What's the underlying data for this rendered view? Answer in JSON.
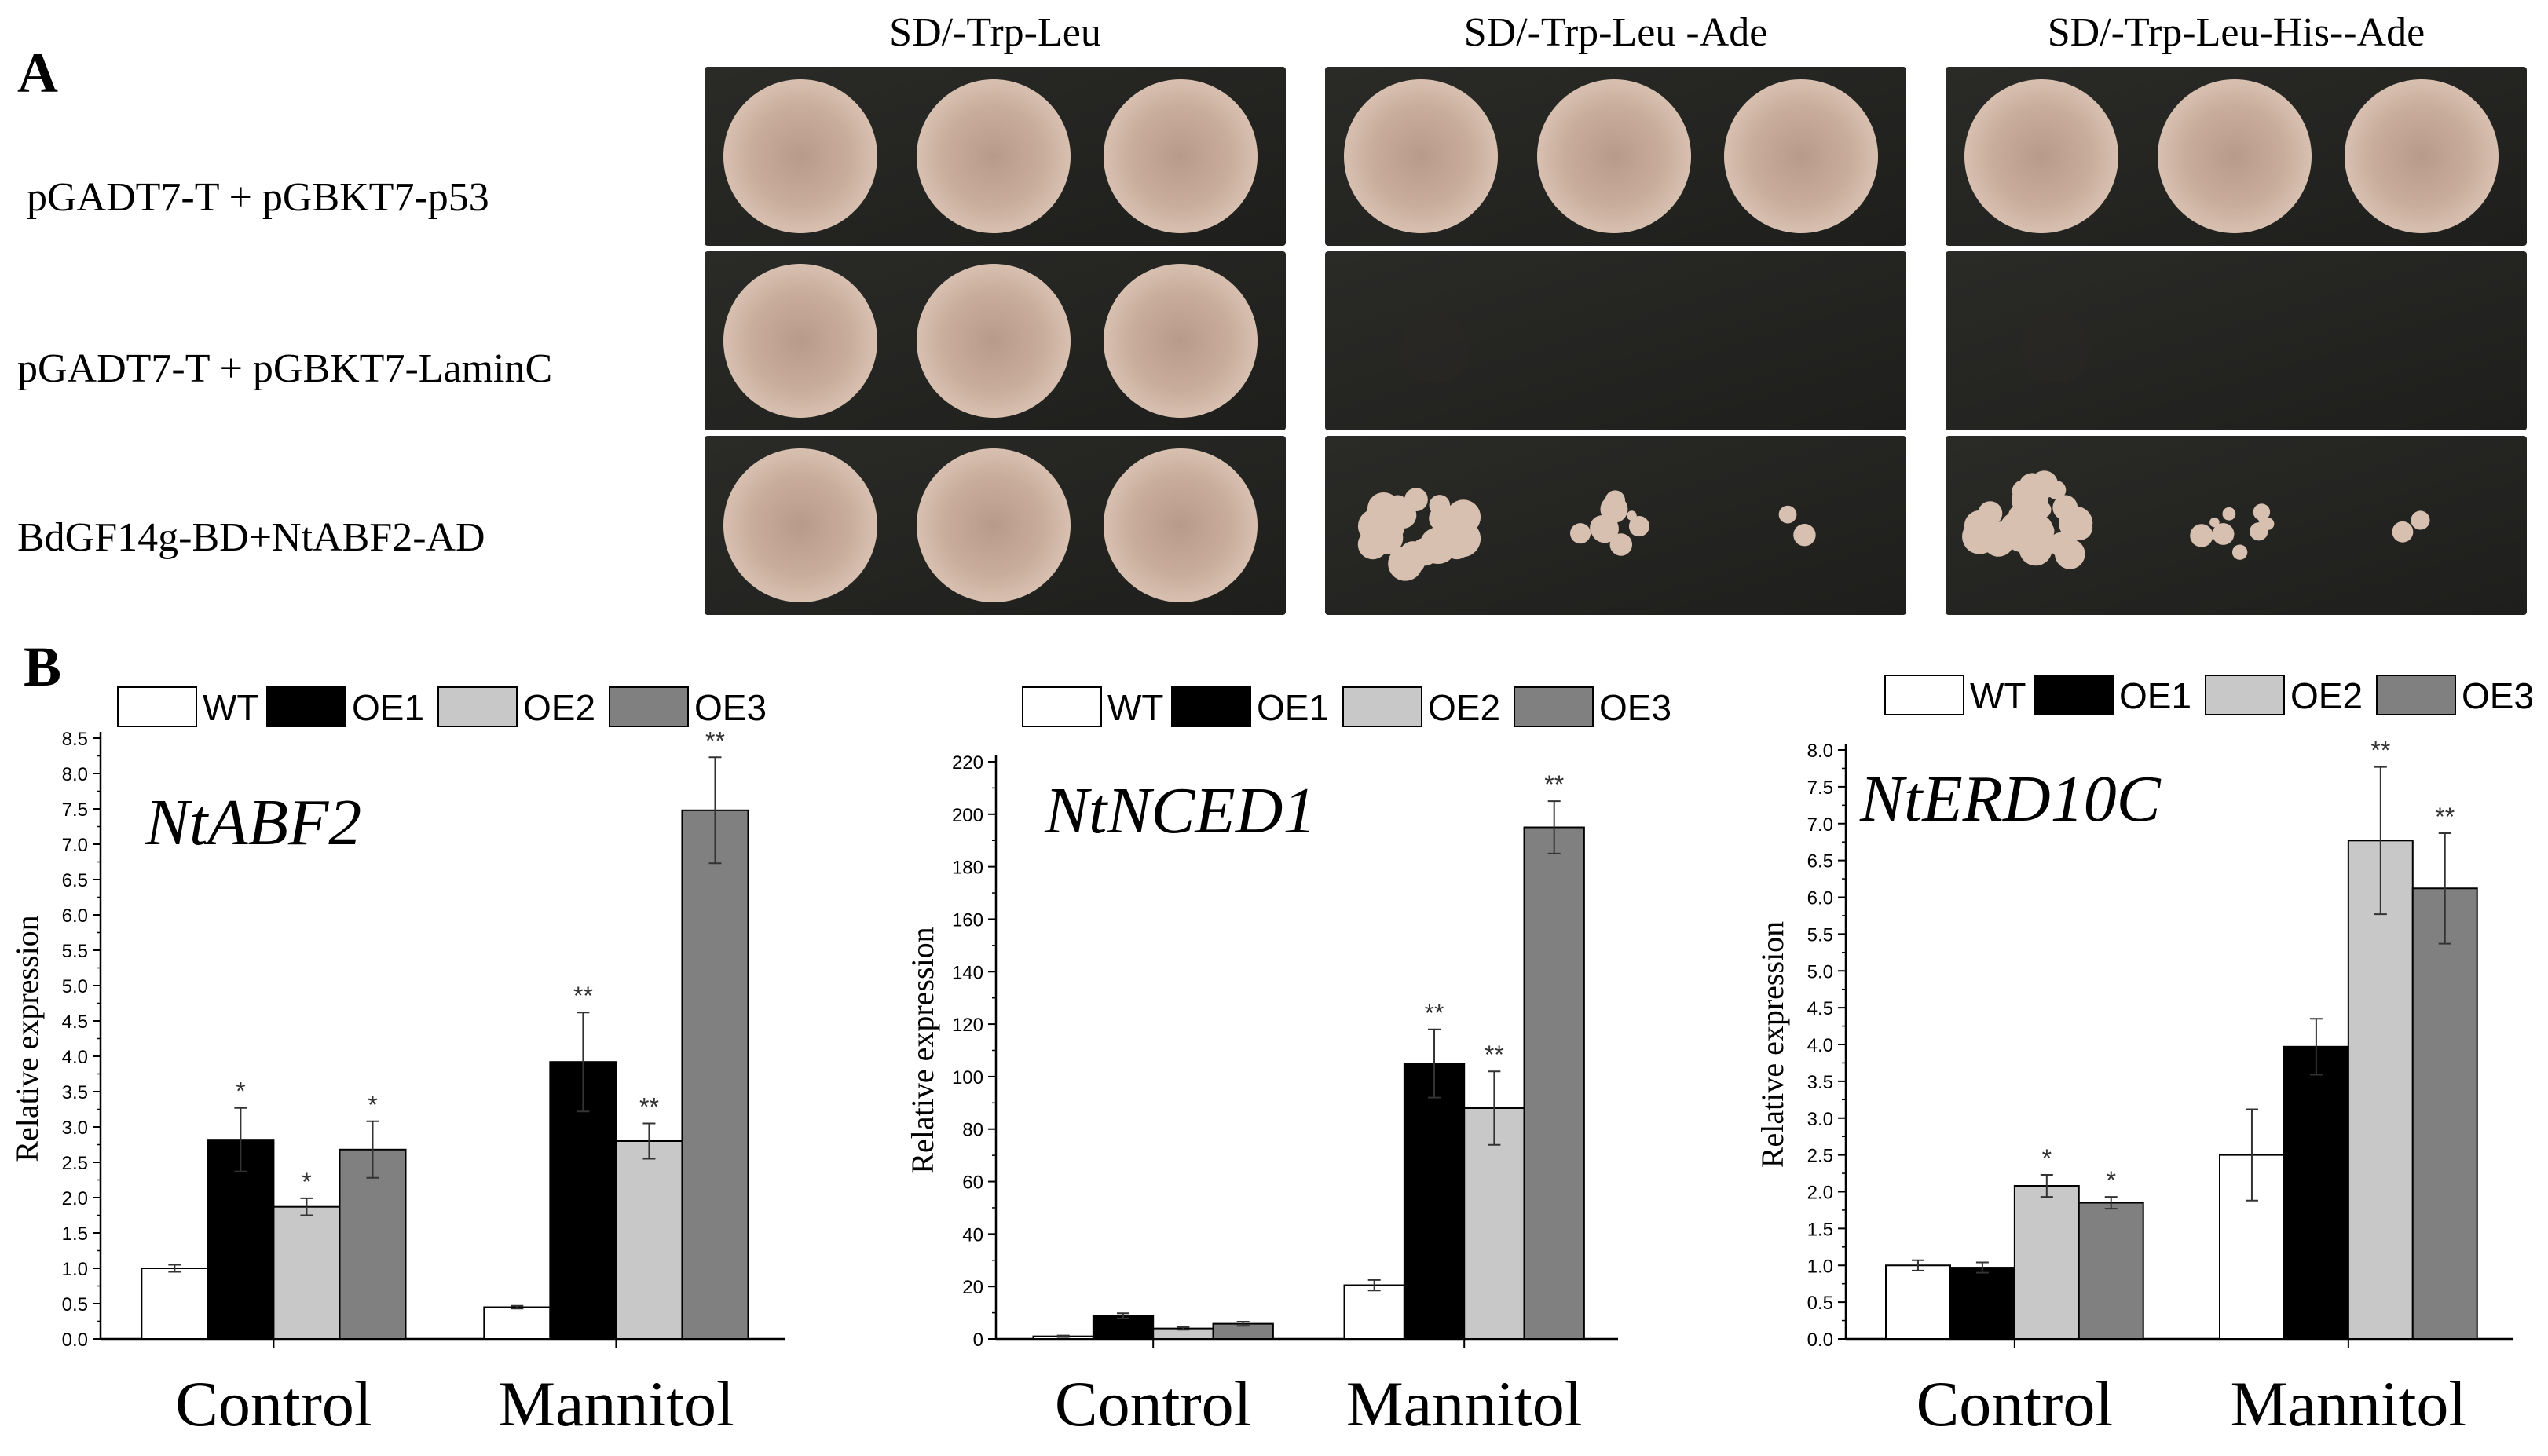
{
  "panel_a": {
    "letter": "A",
    "columns": [
      "SD/-Trp-Leu",
      "SD/-Trp-Leu -Ade",
      "SD/-Trp-Leu-His--Ade"
    ],
    "rows": [
      {
        "label": "pGADT7-T + pGBKT7-p53",
        "growth": [
          "full",
          "full",
          "full"
        ]
      },
      {
        "label": "pGADT7-T + pGBKT7-LaminC",
        "growth": [
          "full",
          "none",
          "none"
        ]
      },
      {
        "label": "BdGF14g-BD+NtABF2-AD",
        "growth": [
          "full",
          "colonies",
          "colonies"
        ]
      }
    ],
    "colors": {
      "plate_dark": "#1e1e1c",
      "plate_light": "#2a2a27",
      "colony": "#c9ad9c",
      "colony_center": "#b89a8a",
      "colony_edge": "#d8c0b0"
    }
  },
  "panel_b": {
    "letter": "B",
    "legend": [
      "WT",
      "OE1",
      "OE2",
      "OE3"
    ],
    "series_colors": [
      "#ffffff",
      "#000000",
      "#c8c8c8",
      "#808080"
    ],
    "ylabel": "Relative expression"
  },
  "chart_data": [
    {
      "type": "bar",
      "title": "NtABF2",
      "ylabel": "Relative expression",
      "categories": [
        "Control",
        "Mannitol"
      ],
      "ylim": [
        0,
        8.5
      ],
      "yticks": [
        "0.0",
        "0.5",
        "1.0",
        "1.5",
        "2.0",
        "2.5",
        "3.0",
        "3.5",
        "4.0",
        "4.5",
        "5.0",
        "5.5",
        "6.0",
        "6.5",
        "7.0",
        "7.5",
        "8.0",
        "8.5"
      ],
      "series": [
        {
          "name": "WT",
          "values": [
            1.0,
            0.45
          ],
          "errors": [
            0.05,
            0.02
          ],
          "sig": [
            "",
            ""
          ]
        },
        {
          "name": "OE1",
          "values": [
            2.82,
            3.92
          ],
          "errors": [
            0.45,
            0.7
          ],
          "sig": [
            "*",
            "**"
          ]
        },
        {
          "name": "OE2",
          "values": [
            1.87,
            2.8
          ],
          "errors": [
            0.12,
            0.25
          ],
          "sig": [
            "*",
            "**"
          ]
        },
        {
          "name": "OE3",
          "values": [
            2.68,
            7.48
          ],
          "errors": [
            0.4,
            0.75
          ],
          "sig": [
            "*",
            "**"
          ]
        }
      ]
    },
    {
      "type": "bar",
      "title": "NtNCED1",
      "ylabel": "Relative expression",
      "categories": [
        "Control",
        "Mannitol"
      ],
      "ylim": [
        0,
        220
      ],
      "yticks": [
        "0",
        "20",
        "40",
        "60",
        "80",
        "100",
        "120",
        "140",
        "160",
        "180",
        "200",
        "220"
      ],
      "series": [
        {
          "name": "WT",
          "values": [
            1,
            20.5
          ],
          "errors": [
            0.3,
            2
          ],
          "sig": [
            "",
            ""
          ]
        },
        {
          "name": "OE1",
          "values": [
            8.8,
            105
          ],
          "errors": [
            1,
            13
          ],
          "sig": [
            "",
            "**"
          ]
        },
        {
          "name": "OE2",
          "values": [
            4,
            88
          ],
          "errors": [
            0.5,
            14
          ],
          "sig": [
            "",
            "**"
          ]
        },
        {
          "name": "OE3",
          "values": [
            5.8,
            195
          ],
          "errors": [
            0.8,
            10
          ],
          "sig": [
            "",
            "**"
          ]
        }
      ]
    },
    {
      "type": "bar",
      "title": "NtERD10C",
      "ylabel": "Relative expression",
      "categories": [
        "Control",
        "Mannitol"
      ],
      "ylim": [
        0,
        8.0
      ],
      "yticks": [
        "0.0",
        "0.5",
        "1.0",
        "1.5",
        "2.0",
        "2.5",
        "3.0",
        "3.5",
        "4.0",
        "4.5",
        "5.0",
        "5.5",
        "6.0",
        "6.5",
        "7.0",
        "7.5",
        "8.0"
      ],
      "series": [
        {
          "name": "WT",
          "values": [
            1.0,
            2.5
          ],
          "errors": [
            0.07,
            0.62
          ],
          "sig": [
            "",
            ""
          ]
        },
        {
          "name": "OE1",
          "values": [
            0.97,
            3.97
          ],
          "errors": [
            0.07,
            0.38
          ],
          "sig": [
            "",
            ""
          ]
        },
        {
          "name": "OE2",
          "values": [
            2.08,
            6.77
          ],
          "errors": [
            0.15,
            1.0
          ],
          "sig": [
            "*",
            "**"
          ]
        },
        {
          "name": "OE3",
          "values": [
            1.85,
            6.12
          ],
          "errors": [
            0.08,
            0.75
          ],
          "sig": [
            "*",
            "**"
          ]
        }
      ]
    }
  ]
}
